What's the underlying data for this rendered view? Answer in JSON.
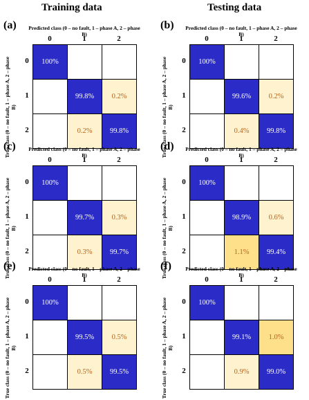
{
  "headings": {
    "left": "Training data",
    "right": "Testing data"
  },
  "axis_labels": {
    "predicted": "Predicted class (0 – no fault, 1 – phase A, 2 – phase B)",
    "true": "True class (0 – no fault, 1 – phase A, 2 – phase B)"
  },
  "class_labels": [
    "0",
    "1",
    "2"
  ],
  "colors": {
    "dark": "#2b2bc8",
    "light": "#fff3cf",
    "medium": "#ffe08a",
    "empty": "#ffffff",
    "light_text": "#ffffff",
    "warm_text": "#b5651d"
  },
  "chart_data": [
    {
      "type": "heatmap",
      "label": "(a)",
      "column": "Training data",
      "x_categories": [
        "0",
        "1",
        "2"
      ],
      "y_categories": [
        "0",
        "1",
        "2"
      ],
      "values": [
        [
          "100%",
          "",
          ""
        ],
        [
          "",
          "99.8%",
          "0.2%"
        ],
        [
          "",
          "0.2%",
          "99.8%"
        ]
      ],
      "xlabel": "Predicted class (0 – no fault, 1 – phase A, 2 – phase B)",
      "ylabel": "True class (0 – no fault, 1 – phase A, 2 – phase B)"
    },
    {
      "type": "heatmap",
      "label": "(b)",
      "column": "Testing data",
      "x_categories": [
        "0",
        "1",
        "2"
      ],
      "y_categories": [
        "0",
        "1",
        "2"
      ],
      "values": [
        [
          "100%",
          "",
          ""
        ],
        [
          "",
          "99.6%",
          "0.2%"
        ],
        [
          "",
          "0.4%",
          "99.8%"
        ]
      ],
      "xlabel": "Predicted class (0 – no fault, 1 – phase A, 2 – phase B)",
      "ylabel": "True class (0 – no fault, 1 – phase A, 2 – phase B)"
    },
    {
      "type": "heatmap",
      "label": "(c)",
      "column": "Training data",
      "x_categories": [
        "0",
        "1",
        "2"
      ],
      "y_categories": [
        "0",
        "1",
        "2"
      ],
      "values": [
        [
          "100%",
          "",
          ""
        ],
        [
          "",
          "99.7%",
          "0.3%"
        ],
        [
          "",
          "0.3%",
          "99.7%"
        ]
      ],
      "xlabel": "Predicted class (0 – no fault, 1 – phase A, 2 – phase B)",
      "ylabel": "True class (0 – no fault, 1 – phase A, 2 – phase B)"
    },
    {
      "type": "heatmap",
      "label": "(d)",
      "column": "Testing data",
      "x_categories": [
        "0",
        "1",
        "2"
      ],
      "y_categories": [
        "0",
        "1",
        "2"
      ],
      "values": [
        [
          "100%",
          "",
          ""
        ],
        [
          "",
          "98.9%",
          "0.6%"
        ],
        [
          "",
          "1.1%",
          "99.4%"
        ]
      ],
      "xlabel": "Predicted class (0 – no fault, 1 – phase A, 2 – phase B)",
      "ylabel": "True class (0 – no fault, 1 – phase A, 2 – phase B)"
    },
    {
      "type": "heatmap",
      "label": "(e)",
      "column": "Training data",
      "x_categories": [
        "0",
        "1",
        "2"
      ],
      "y_categories": [
        "0",
        "1",
        "2"
      ],
      "values": [
        [
          "100%",
          "",
          ""
        ],
        [
          "",
          "99.5%",
          "0.5%"
        ],
        [
          "",
          "0.5%",
          "99.5%"
        ]
      ],
      "xlabel": "Predicted class (0 – no fault, 1 – phase A, 2 – phase B)",
      "ylabel": "True class (0 – no fault, 1 – phase A, 2 – phase B)"
    },
    {
      "type": "heatmap",
      "label": "(f)",
      "column": "Testing data",
      "x_categories": [
        "0",
        "1",
        "2"
      ],
      "y_categories": [
        "0",
        "1",
        "2"
      ],
      "values": [
        [
          "100%",
          "",
          ""
        ],
        [
          "",
          "99.1%",
          "1.0%"
        ],
        [
          "",
          "0.9%",
          "99.0%"
        ]
      ],
      "xlabel": "Predicted class (0 – no fault, 1 – phase A, 2 – phase B)",
      "ylabel": "True class (0 – no fault, 1 – phase A, 2 – phase B)"
    }
  ]
}
